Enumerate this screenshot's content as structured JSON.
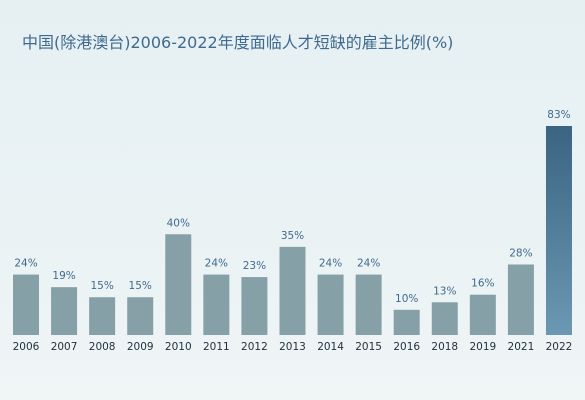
{
  "chart_data": {
    "type": "bar",
    "title": "中国(除港澳台)2006-2022年度面临人才短缺的雇主比例(%)",
    "xlabel": "",
    "ylabel": "",
    "categories": [
      "2006",
      "2007",
      "2008",
      "2009",
      "2010",
      "2011",
      "2012",
      "2013",
      "2014",
      "2015",
      "2016",
      "2018",
      "2019",
      "2021",
      "2022"
    ],
    "values": [
      24,
      19,
      15,
      15,
      40,
      24,
      23,
      35,
      24,
      24,
      10,
      13,
      16,
      28,
      83
    ],
    "value_labels": [
      "24%",
      "19%",
      "15%",
      "15%",
      "40%",
      "24%",
      "23%",
      "35%",
      "24%",
      "24%",
      "10%",
      "13%",
      "16%",
      "28%",
      "83%"
    ],
    "ylim": [
      0,
      83
    ],
    "grid": false,
    "legend": "none",
    "colors": {
      "bar": "#86a0a8",
      "highlight_top": "#3a6482",
      "highlight_bottom": "#6b98b3",
      "value_text": "#3f6a8e",
      "tick_text": "#1f2f3d",
      "title": "#3f6a8e"
    }
  }
}
